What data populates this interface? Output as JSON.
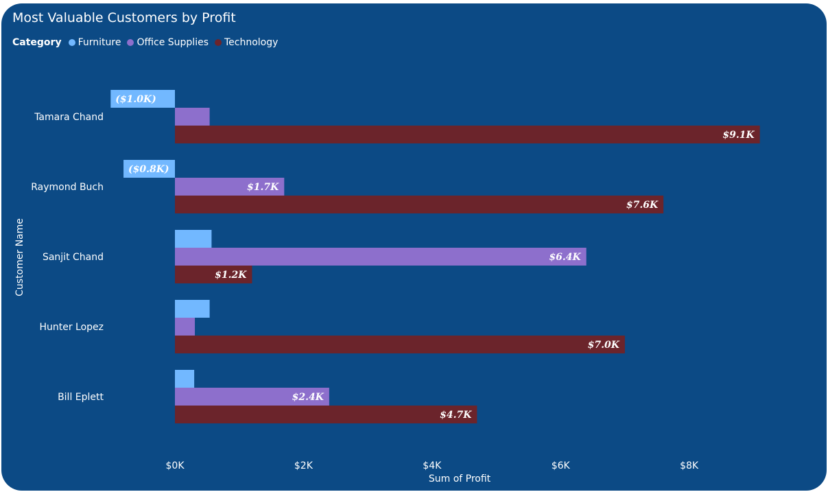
{
  "chart_data": {
    "type": "bar",
    "orientation": "horizontal",
    "title": "Most Valuable Customers by Profit",
    "legend_title": "Category",
    "xlabel": "Sum of Profit",
    "ylabel": "Customer Name",
    "categories": [
      "Tamara Chand",
      "Raymond Buch",
      "Sanjit Chand",
      "Hunter Lopez",
      "Bill Eplett"
    ],
    "xlim": [
      -2,
      10
    ],
    "ticks": [
      {
        "value": 0,
        "label": "$0K"
      },
      {
        "value": 2,
        "label": "$2K"
      },
      {
        "value": 4,
        "label": "$4K"
      },
      {
        "value": 6,
        "label": "$6K"
      },
      {
        "value": 8,
        "label": "$8K"
      }
    ],
    "grid": false,
    "legend_position": "top-left",
    "series": [
      {
        "name": "Furniture",
        "color": "#72b8ff",
        "values": [
          -1.0,
          -0.8,
          0.57,
          0.54,
          0.3
        ],
        "labels": [
          "($1.0K)",
          "($0.8K)",
          "",
          "",
          ""
        ]
      },
      {
        "name": "Office Supplies",
        "color": "#8d6fcc",
        "values": [
          0.54,
          1.7,
          6.4,
          0.31,
          2.4
        ],
        "labels": [
          "",
          "$1.7K",
          "$6.4K",
          "",
          "$2.4K"
        ]
      },
      {
        "name": "Technology",
        "color": "#6b242b",
        "values": [
          9.1,
          7.6,
          1.2,
          7.0,
          4.7
        ],
        "labels": [
          "$9.1K",
          "$7.6K",
          "$1.2K",
          "$7.0K",
          "$4.7K"
        ]
      }
    ]
  }
}
